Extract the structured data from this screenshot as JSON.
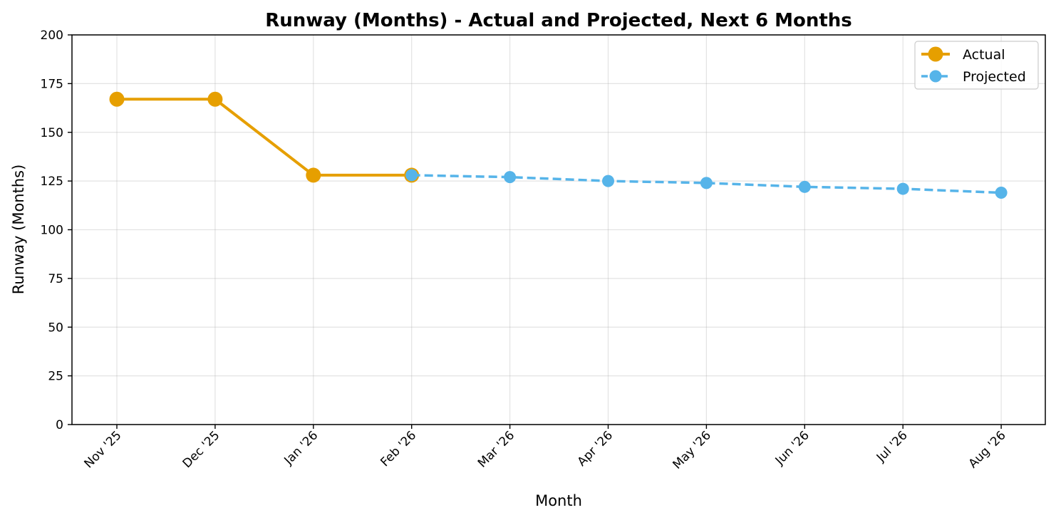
{
  "chart_data": {
    "type": "line",
    "title": "Runway (Months) - Actual and Projected, Next 6 Months",
    "xlabel": "Month",
    "ylabel": "Runway (Months)",
    "categories": [
      "Nov '25",
      "Dec '25",
      "Jan '26",
      "Feb '26",
      "Mar '26",
      "Apr '26",
      "May '26",
      "Jun '26",
      "Jul '26",
      "Aug '26"
    ],
    "ylim": [
      0,
      200
    ],
    "yticks": [
      0,
      25,
      50,
      75,
      100,
      125,
      150,
      175,
      200
    ],
    "grid": true,
    "legend_position": "top-right",
    "series": [
      {
        "name": "Actual",
        "color": "#E69F00",
        "line_style": "solid",
        "x": [
          "Nov '25",
          "Dec '25",
          "Jan '26",
          "Feb '26"
        ],
        "values": [
          167,
          167,
          128,
          128
        ]
      },
      {
        "name": "Projected",
        "color": "#56B4E9",
        "line_style": "dashed",
        "x": [
          "Feb '26",
          "Mar '26",
          "Apr '26",
          "May '26",
          "Jun '26",
          "Jul '26",
          "Aug '26"
        ],
        "values": [
          128,
          127,
          125,
          124,
          122,
          121,
          119
        ]
      }
    ]
  }
}
